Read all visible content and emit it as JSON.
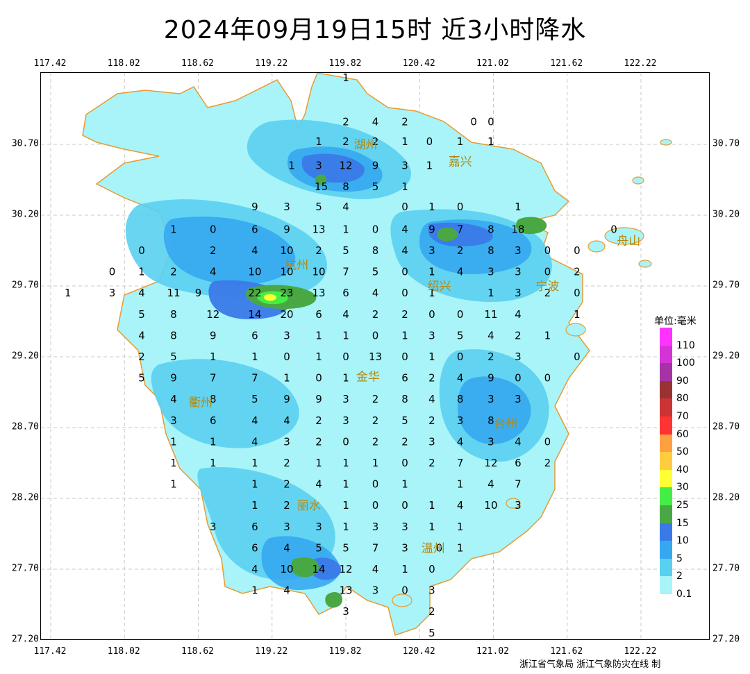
{
  "title": "2024年09月19日15时  近3小时降水",
  "lon_ticks": [
    "117.42",
    "118.02",
    "118.62",
    "119.22",
    "119.82",
    "120.42",
    "121.02",
    "121.62",
    "122.22"
  ],
  "lat_ticks": [
    "30.70",
    "30.20",
    "29.70",
    "29.20",
    "28.70",
    "28.20",
    "27.70",
    "27.20"
  ],
  "legend": {
    "title": "单位:毫米",
    "levels": [
      {
        "label": "110",
        "color": "#ff33ff"
      },
      {
        "label": "100",
        "color": "#d633d6"
      },
      {
        "label": "90",
        "color": "#a633a6"
      },
      {
        "label": "80",
        "color": "#993333"
      },
      {
        "label": "70",
        "color": "#cc3333"
      },
      {
        "label": "60",
        "color": "#ff3333"
      },
      {
        "label": "50",
        "color": "#ffa040"
      },
      {
        "label": "40",
        "color": "#ffcc40"
      },
      {
        "label": "30",
        "color": "#ffff33"
      },
      {
        "label": "25",
        "color": "#44ee44"
      },
      {
        "label": "15",
        "color": "#4aa844"
      },
      {
        "label": "10",
        "color": "#3a7ae8"
      },
      {
        "label": "5",
        "color": "#36a8f0"
      },
      {
        "label": "2",
        "color": "#5ad0f0"
      },
      {
        "label": "0.1",
        "color": "#a8f4f8"
      }
    ]
  },
  "cities": [
    {
      "name": "湖州",
      "lon": 119.98,
      "lat": 30.7
    },
    {
      "name": "嘉兴",
      "lon": 120.75,
      "lat": 30.58
    },
    {
      "name": "杭州",
      "lon": 119.42,
      "lat": 29.85
    },
    {
      "name": "绍兴",
      "lon": 120.58,
      "lat": 29.7
    },
    {
      "name": "宁波",
      "lon": 121.46,
      "lat": 29.7
    },
    {
      "name": "舟山",
      "lon": 122.12,
      "lat": 30.02
    },
    {
      "name": "金华",
      "lon": 120.0,
      "lat": 29.06
    },
    {
      "name": "衢州",
      "lon": 118.64,
      "lat": 28.88
    },
    {
      "name": "台州",
      "lon": 121.12,
      "lat": 28.73
    },
    {
      "name": "丽水",
      "lon": 119.52,
      "lat": 28.15
    },
    {
      "name": "温州",
      "lon": 120.53,
      "lat": 27.85
    }
  ],
  "stations": [
    {
      "v": "1",
      "lon": 119.82,
      "lat": 31.17
    },
    {
      "v": "2",
      "lon": 119.82,
      "lat": 30.86
    },
    {
      "v": "4",
      "lon": 120.06,
      "lat": 30.86
    },
    {
      "v": "2",
      "lon": 120.3,
      "lat": 30.86
    },
    {
      "v": "0",
      "lon": 120.86,
      "lat": 30.86
    },
    {
      "v": "0",
      "lon": 121.0,
      "lat": 30.86
    },
    {
      "v": "1",
      "lon": 119.6,
      "lat": 30.72
    },
    {
      "v": "2",
      "lon": 119.82,
      "lat": 30.72
    },
    {
      "v": "2",
      "lon": 120.06,
      "lat": 30.72
    },
    {
      "v": "1",
      "lon": 120.3,
      "lat": 30.72
    },
    {
      "v": "0",
      "lon": 120.5,
      "lat": 30.72
    },
    {
      "v": "1",
      "lon": 120.75,
      "lat": 30.72
    },
    {
      "v": "1",
      "lon": 121.0,
      "lat": 30.72
    },
    {
      "v": "1",
      "lon": 119.38,
      "lat": 30.55
    },
    {
      "v": "3",
      "lon": 119.6,
      "lat": 30.55
    },
    {
      "v": "12",
      "lon": 119.82,
      "lat": 30.55
    },
    {
      "v": "9",
      "lon": 120.06,
      "lat": 30.55
    },
    {
      "v": "3",
      "lon": 120.3,
      "lat": 30.55
    },
    {
      "v": "1",
      "lon": 120.5,
      "lat": 30.55
    },
    {
      "v": "15",
      "lon": 119.62,
      "lat": 30.4
    },
    {
      "v": "8",
      "lon": 119.82,
      "lat": 30.4
    },
    {
      "v": "5",
      "lon": 120.06,
      "lat": 30.4
    },
    {
      "v": "1",
      "lon": 120.3,
      "lat": 30.4
    },
    {
      "v": "9",
      "lon": 119.08,
      "lat": 30.26
    },
    {
      "v": "3",
      "lon": 119.34,
      "lat": 30.26
    },
    {
      "v": "5",
      "lon": 119.6,
      "lat": 30.26
    },
    {
      "v": "4",
      "lon": 119.82,
      "lat": 30.26
    },
    {
      "v": "0",
      "lon": 120.3,
      "lat": 30.26
    },
    {
      "v": "1",
      "lon": 120.52,
      "lat": 30.26
    },
    {
      "v": "0",
      "lon": 120.75,
      "lat": 30.26
    },
    {
      "v": "1",
      "lon": 121.22,
      "lat": 30.26
    },
    {
      "v": "1",
      "lon": 118.42,
      "lat": 30.1
    },
    {
      "v": "0",
      "lon": 118.74,
      "lat": 30.1
    },
    {
      "v": "6",
      "lon": 119.08,
      "lat": 30.1
    },
    {
      "v": "9",
      "lon": 119.34,
      "lat": 30.1
    },
    {
      "v": "13",
      "lon": 119.6,
      "lat": 30.1
    },
    {
      "v": "1",
      "lon": 119.82,
      "lat": 30.1
    },
    {
      "v": "0",
      "lon": 120.06,
      "lat": 30.1
    },
    {
      "v": "4",
      "lon": 120.3,
      "lat": 30.1
    },
    {
      "v": "9",
      "lon": 120.52,
      "lat": 30.1
    },
    {
      "v": "7",
      "lon": 120.75,
      "lat": 30.1
    },
    {
      "v": "8",
      "lon": 121.0,
      "lat": 30.1
    },
    {
      "v": "18",
      "lon": 121.22,
      "lat": 30.1
    },
    {
      "v": "0",
      "lon": 122.0,
      "lat": 30.1
    },
    {
      "v": "0",
      "lon": 118.16,
      "lat": 29.95
    },
    {
      "v": "2",
      "lon": 118.74,
      "lat": 29.95
    },
    {
      "v": "4",
      "lon": 119.08,
      "lat": 29.95
    },
    {
      "v": "10",
      "lon": 119.34,
      "lat": 29.95
    },
    {
      "v": "2",
      "lon": 119.6,
      "lat": 29.95
    },
    {
      "v": "5",
      "lon": 119.82,
      "lat": 29.95
    },
    {
      "v": "8",
      "lon": 120.06,
      "lat": 29.95
    },
    {
      "v": "4",
      "lon": 120.3,
      "lat": 29.95
    },
    {
      "v": "3",
      "lon": 120.52,
      "lat": 29.95
    },
    {
      "v": "2",
      "lon": 120.75,
      "lat": 29.95
    },
    {
      "v": "8",
      "lon": 121.0,
      "lat": 29.95
    },
    {
      "v": "3",
      "lon": 121.22,
      "lat": 29.95
    },
    {
      "v": "0",
      "lon": 121.46,
      "lat": 29.95
    },
    {
      "v": "0",
      "lon": 121.7,
      "lat": 29.95
    },
    {
      "v": "0",
      "lon": 117.92,
      "lat": 29.8
    },
    {
      "v": "1",
      "lon": 118.16,
      "lat": 29.8
    },
    {
      "v": "2",
      "lon": 118.42,
      "lat": 29.8
    },
    {
      "v": "4",
      "lon": 118.74,
      "lat": 29.8
    },
    {
      "v": "10",
      "lon": 119.08,
      "lat": 29.8
    },
    {
      "v": "10",
      "lon": 119.34,
      "lat": 29.8
    },
    {
      "v": "10",
      "lon": 119.6,
      "lat": 29.8
    },
    {
      "v": "7",
      "lon": 119.82,
      "lat": 29.8
    },
    {
      "v": "5",
      "lon": 120.06,
      "lat": 29.8
    },
    {
      "v": "0",
      "lon": 120.3,
      "lat": 29.8
    },
    {
      "v": "1",
      "lon": 120.52,
      "lat": 29.8
    },
    {
      "v": "4",
      "lon": 120.75,
      "lat": 29.8
    },
    {
      "v": "3",
      "lon": 121.0,
      "lat": 29.8
    },
    {
      "v": "3",
      "lon": 121.22,
      "lat": 29.8
    },
    {
      "v": "0",
      "lon": 121.46,
      "lat": 29.8
    },
    {
      "v": "2",
      "lon": 121.7,
      "lat": 29.8
    },
    {
      "v": "1",
      "lon": 117.56,
      "lat": 29.65
    },
    {
      "v": "3",
      "lon": 117.92,
      "lat": 29.65
    },
    {
      "v": "4",
      "lon": 118.16,
      "lat": 29.65
    },
    {
      "v": "11",
      "lon": 118.42,
      "lat": 29.65
    },
    {
      "v": "9",
      "lon": 118.62,
      "lat": 29.65
    },
    {
      "v": "22",
      "lon": 119.08,
      "lat": 29.65
    },
    {
      "v": "23",
      "lon": 119.34,
      "lat": 29.65
    },
    {
      "v": "13",
      "lon": 119.6,
      "lat": 29.65
    },
    {
      "v": "6",
      "lon": 119.82,
      "lat": 29.65
    },
    {
      "v": "4",
      "lon": 120.06,
      "lat": 29.65
    },
    {
      "v": "0",
      "lon": 120.3,
      "lat": 29.65
    },
    {
      "v": "1",
      "lon": 120.52,
      "lat": 29.65
    },
    {
      "v": "1",
      "lon": 121.0,
      "lat": 29.65
    },
    {
      "v": "3",
      "lon": 121.22,
      "lat": 29.65
    },
    {
      "v": "2",
      "lon": 121.46,
      "lat": 29.65
    },
    {
      "v": "0",
      "lon": 121.7,
      "lat": 29.65
    },
    {
      "v": "5",
      "lon": 118.16,
      "lat": 29.5
    },
    {
      "v": "8",
      "lon": 118.42,
      "lat": 29.5
    },
    {
      "v": "12",
      "lon": 118.74,
      "lat": 29.5
    },
    {
      "v": "14",
      "lon": 119.08,
      "lat": 29.5
    },
    {
      "v": "20",
      "lon": 119.34,
      "lat": 29.5
    },
    {
      "v": "6",
      "lon": 119.6,
      "lat": 29.5
    },
    {
      "v": "4",
      "lon": 119.82,
      "lat": 29.5
    },
    {
      "v": "2",
      "lon": 120.06,
      "lat": 29.5
    },
    {
      "v": "2",
      "lon": 120.3,
      "lat": 29.5
    },
    {
      "v": "0",
      "lon": 120.52,
      "lat": 29.5
    },
    {
      "v": "0",
      "lon": 120.75,
      "lat": 29.5
    },
    {
      "v": "11",
      "lon": 121.0,
      "lat": 29.5
    },
    {
      "v": "4",
      "lon": 121.22,
      "lat": 29.5
    },
    {
      "v": "1",
      "lon": 121.7,
      "lat": 29.5
    },
    {
      "v": "4",
      "lon": 118.16,
      "lat": 29.35
    },
    {
      "v": "8",
      "lon": 118.42,
      "lat": 29.35
    },
    {
      "v": "9",
      "lon": 118.74,
      "lat": 29.35
    },
    {
      "v": "6",
      "lon": 119.08,
      "lat": 29.35
    },
    {
      "v": "3",
      "lon": 119.34,
      "lat": 29.35
    },
    {
      "v": "1",
      "lon": 119.6,
      "lat": 29.35
    },
    {
      "v": "1",
      "lon": 119.82,
      "lat": 29.35
    },
    {
      "v": "0",
      "lon": 120.06,
      "lat": 29.35
    },
    {
      "v": "1",
      "lon": 120.3,
      "lat": 29.35
    },
    {
      "v": "3",
      "lon": 120.52,
      "lat": 29.35
    },
    {
      "v": "5",
      "lon": 120.75,
      "lat": 29.35
    },
    {
      "v": "4",
      "lon": 121.0,
      "lat": 29.35
    },
    {
      "v": "2",
      "lon": 121.22,
      "lat": 29.35
    },
    {
      "v": "1",
      "lon": 121.46,
      "lat": 29.35
    },
    {
      "v": "2",
      "lon": 118.16,
      "lat": 29.2
    },
    {
      "v": "5",
      "lon": 118.42,
      "lat": 29.2
    },
    {
      "v": "1",
      "lon": 118.74,
      "lat": 29.2
    },
    {
      "v": "1",
      "lon": 119.08,
      "lat": 29.2
    },
    {
      "v": "0",
      "lon": 119.34,
      "lat": 29.2
    },
    {
      "v": "1",
      "lon": 119.6,
      "lat": 29.2
    },
    {
      "v": "0",
      "lon": 119.82,
      "lat": 29.2
    },
    {
      "v": "13",
      "lon": 120.06,
      "lat": 29.2
    },
    {
      "v": "0",
      "lon": 120.3,
      "lat": 29.2
    },
    {
      "v": "1",
      "lon": 120.52,
      "lat": 29.2
    },
    {
      "v": "0",
      "lon": 120.75,
      "lat": 29.2
    },
    {
      "v": "2",
      "lon": 121.0,
      "lat": 29.2
    },
    {
      "v": "3",
      "lon": 121.22,
      "lat": 29.2
    },
    {
      "v": "0",
      "lon": 121.7,
      "lat": 29.2
    },
    {
      "v": "5",
      "lon": 118.16,
      "lat": 29.05
    },
    {
      "v": "9",
      "lon": 118.42,
      "lat": 29.05
    },
    {
      "v": "7",
      "lon": 118.74,
      "lat": 29.05
    },
    {
      "v": "7",
      "lon": 119.08,
      "lat": 29.05
    },
    {
      "v": "1",
      "lon": 119.34,
      "lat": 29.05
    },
    {
      "v": "0",
      "lon": 119.6,
      "lat": 29.05
    },
    {
      "v": "1",
      "lon": 119.82,
      "lat": 29.05
    },
    {
      "v": "6",
      "lon": 120.3,
      "lat": 29.05
    },
    {
      "v": "2",
      "lon": 120.52,
      "lat": 29.05
    },
    {
      "v": "4",
      "lon": 120.75,
      "lat": 29.05
    },
    {
      "v": "9",
      "lon": 121.0,
      "lat": 29.05
    },
    {
      "v": "0",
      "lon": 121.22,
      "lat": 29.05
    },
    {
      "v": "0",
      "lon": 121.46,
      "lat": 29.05
    },
    {
      "v": "4",
      "lon": 118.42,
      "lat": 28.9
    },
    {
      "v": "8",
      "lon": 118.74,
      "lat": 28.9
    },
    {
      "v": "5",
      "lon": 119.08,
      "lat": 28.9
    },
    {
      "v": "9",
      "lon": 119.34,
      "lat": 28.9
    },
    {
      "v": "9",
      "lon": 119.6,
      "lat": 28.9
    },
    {
      "v": "3",
      "lon": 119.82,
      "lat": 28.9
    },
    {
      "v": "2",
      "lon": 120.06,
      "lat": 28.9
    },
    {
      "v": "8",
      "lon": 120.3,
      "lat": 28.9
    },
    {
      "v": "4",
      "lon": 120.52,
      "lat": 28.9
    },
    {
      "v": "8",
      "lon": 120.75,
      "lat": 28.9
    },
    {
      "v": "3",
      "lon": 121.0,
      "lat": 28.9
    },
    {
      "v": "3",
      "lon": 121.22,
      "lat": 28.9
    },
    {
      "v": "3",
      "lon": 118.42,
      "lat": 28.75
    },
    {
      "v": "6",
      "lon": 118.74,
      "lat": 28.75
    },
    {
      "v": "4",
      "lon": 119.08,
      "lat": 28.75
    },
    {
      "v": "4",
      "lon": 119.34,
      "lat": 28.75
    },
    {
      "v": "2",
      "lon": 119.6,
      "lat": 28.75
    },
    {
      "v": "3",
      "lon": 119.82,
      "lat": 28.75
    },
    {
      "v": "2",
      "lon": 120.06,
      "lat": 28.75
    },
    {
      "v": "5",
      "lon": 120.3,
      "lat": 28.75
    },
    {
      "v": "2",
      "lon": 120.52,
      "lat": 28.75
    },
    {
      "v": "3",
      "lon": 120.75,
      "lat": 28.75
    },
    {
      "v": "8",
      "lon": 121.0,
      "lat": 28.75
    },
    {
      "v": "1",
      "lon": 118.42,
      "lat": 28.6
    },
    {
      "v": "1",
      "lon": 118.74,
      "lat": 28.6
    },
    {
      "v": "4",
      "lon": 119.08,
      "lat": 28.6
    },
    {
      "v": "3",
      "lon": 119.34,
      "lat": 28.6
    },
    {
      "v": "2",
      "lon": 119.6,
      "lat": 28.6
    },
    {
      "v": "0",
      "lon": 119.82,
      "lat": 28.6
    },
    {
      "v": "2",
      "lon": 120.06,
      "lat": 28.6
    },
    {
      "v": "2",
      "lon": 120.3,
      "lat": 28.6
    },
    {
      "v": "3",
      "lon": 120.52,
      "lat": 28.6
    },
    {
      "v": "4",
      "lon": 120.75,
      "lat": 28.6
    },
    {
      "v": "3",
      "lon": 121.0,
      "lat": 28.6
    },
    {
      "v": "4",
      "lon": 121.22,
      "lat": 28.6
    },
    {
      "v": "0",
      "lon": 121.46,
      "lat": 28.6
    },
    {
      "v": "1",
      "lon": 118.42,
      "lat": 28.45
    },
    {
      "v": "1",
      "lon": 118.74,
      "lat": 28.45
    },
    {
      "v": "1",
      "lon": 119.08,
      "lat": 28.45
    },
    {
      "v": "2",
      "lon": 119.34,
      "lat": 28.45
    },
    {
      "v": "1",
      "lon": 119.6,
      "lat": 28.45
    },
    {
      "v": "1",
      "lon": 119.82,
      "lat": 28.45
    },
    {
      "v": "1",
      "lon": 120.06,
      "lat": 28.45
    },
    {
      "v": "0",
      "lon": 120.3,
      "lat": 28.45
    },
    {
      "v": "2",
      "lon": 120.52,
      "lat": 28.45
    },
    {
      "v": "7",
      "lon": 120.75,
      "lat": 28.45
    },
    {
      "v": "12",
      "lon": 121.0,
      "lat": 28.45
    },
    {
      "v": "6",
      "lon": 121.22,
      "lat": 28.45
    },
    {
      "v": "2",
      "lon": 121.46,
      "lat": 28.45
    },
    {
      "v": "1",
      "lon": 118.42,
      "lat": 28.3
    },
    {
      "v": "1",
      "lon": 119.08,
      "lat": 28.3
    },
    {
      "v": "2",
      "lon": 119.34,
      "lat": 28.3
    },
    {
      "v": "4",
      "lon": 119.6,
      "lat": 28.3
    },
    {
      "v": "1",
      "lon": 119.82,
      "lat": 28.3
    },
    {
      "v": "0",
      "lon": 120.06,
      "lat": 28.3
    },
    {
      "v": "1",
      "lon": 120.3,
      "lat": 28.3
    },
    {
      "v": "1",
      "lon": 120.75,
      "lat": 28.3
    },
    {
      "v": "4",
      "lon": 121.0,
      "lat": 28.3
    },
    {
      "v": "7",
      "lon": 121.22,
      "lat": 28.3
    },
    {
      "v": "1",
      "lon": 119.08,
      "lat": 28.15
    },
    {
      "v": "2",
      "lon": 119.34,
      "lat": 28.15
    },
    {
      "v": "1",
      "lon": 119.82,
      "lat": 28.15
    },
    {
      "v": "0",
      "lon": 120.06,
      "lat": 28.15
    },
    {
      "v": "0",
      "lon": 120.3,
      "lat": 28.15
    },
    {
      "v": "1",
      "lon": 120.52,
      "lat": 28.15
    },
    {
      "v": "4",
      "lon": 120.75,
      "lat": 28.15
    },
    {
      "v": "10",
      "lon": 121.0,
      "lat": 28.15
    },
    {
      "v": "3",
      "lon": 121.22,
      "lat": 28.15
    },
    {
      "v": "3",
      "lon": 118.74,
      "lat": 28.0
    },
    {
      "v": "6",
      "lon": 119.08,
      "lat": 28.0
    },
    {
      "v": "3",
      "lon": 119.34,
      "lat": 28.0
    },
    {
      "v": "3",
      "lon": 119.6,
      "lat": 28.0
    },
    {
      "v": "1",
      "lon": 119.82,
      "lat": 28.0
    },
    {
      "v": "3",
      "lon": 120.06,
      "lat": 28.0
    },
    {
      "v": "3",
      "lon": 120.3,
      "lat": 28.0
    },
    {
      "v": "1",
      "lon": 120.52,
      "lat": 28.0
    },
    {
      "v": "1",
      "lon": 120.75,
      "lat": 28.0
    },
    {
      "v": "6",
      "lon": 119.08,
      "lat": 27.85
    },
    {
      "v": "4",
      "lon": 119.34,
      "lat": 27.85
    },
    {
      "v": "5",
      "lon": 119.6,
      "lat": 27.85
    },
    {
      "v": "5",
      "lon": 119.82,
      "lat": 27.85
    },
    {
      "v": "7",
      "lon": 120.06,
      "lat": 27.85
    },
    {
      "v": "3",
      "lon": 120.3,
      "lat": 27.85
    },
    {
      "v": "0",
      "lon": 120.58,
      "lat": 27.85
    },
    {
      "v": "1",
      "lon": 120.75,
      "lat": 27.85
    },
    {
      "v": "4",
      "lon": 119.08,
      "lat": 27.7
    },
    {
      "v": "10",
      "lon": 119.34,
      "lat": 27.7
    },
    {
      "v": "14",
      "lon": 119.6,
      "lat": 27.7
    },
    {
      "v": "12",
      "lon": 119.82,
      "lat": 27.7
    },
    {
      "v": "4",
      "lon": 120.06,
      "lat": 27.7
    },
    {
      "v": "1",
      "lon": 120.3,
      "lat": 27.7
    },
    {
      "v": "0",
      "lon": 120.52,
      "lat": 27.7
    },
    {
      "v": "1",
      "lon": 119.08,
      "lat": 27.55
    },
    {
      "v": "4",
      "lon": 119.34,
      "lat": 27.55
    },
    {
      "v": "13",
      "lon": 119.82,
      "lat": 27.55
    },
    {
      "v": "3",
      "lon": 120.06,
      "lat": 27.55
    },
    {
      "v": "0",
      "lon": 120.3,
      "lat": 27.55
    },
    {
      "v": "3",
      "lon": 120.52,
      "lat": 27.55
    },
    {
      "v": "3",
      "lon": 119.82,
      "lat": 27.4
    },
    {
      "v": "2",
      "lon": 120.52,
      "lat": 27.4
    },
    {
      "v": "5",
      "lon": 120.52,
      "lat": 27.25
    }
  ],
  "credit": "浙江省气象局   浙江气象防灾在线 制"
}
